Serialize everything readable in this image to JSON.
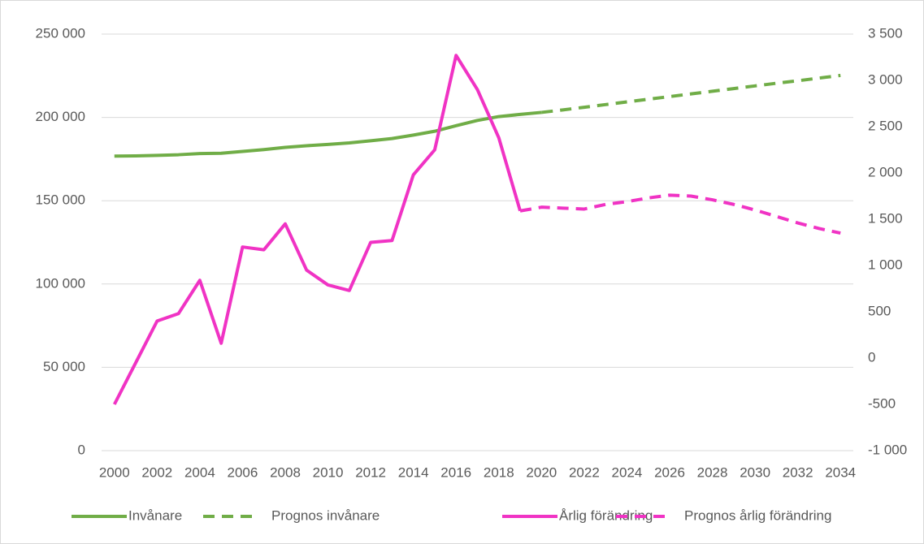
{
  "chart_data": {
    "type": "line",
    "x": [
      2000,
      2001,
      2002,
      2003,
      2004,
      2005,
      2006,
      2007,
      2008,
      2009,
      2010,
      2011,
      2012,
      2013,
      2014,
      2015,
      2016,
      2017,
      2018,
      2019,
      2020,
      2021,
      2022,
      2023,
      2024,
      2025,
      2026,
      2027,
      2028,
      2029,
      2030,
      2031,
      2032,
      2033,
      2034
    ],
    "xlim": [
      1999.4,
      2034.6
    ],
    "xticks": [
      2000,
      2002,
      2004,
      2006,
      2008,
      2010,
      2012,
      2014,
      2016,
      2018,
      2020,
      2022,
      2024,
      2026,
      2028,
      2030,
      2032,
      2034
    ],
    "ylim": [
      0,
      250000
    ],
    "yticks": [
      0,
      {
        "value": 50000,
        "label": "50 000"
      },
      {
        "value": 100000,
        "label": "100 000"
      },
      {
        "value": 150000,
        "label": "150 000"
      },
      {
        "value": 200000,
        "label": "200 000"
      },
      {
        "value": 250000,
        "label": "250 000"
      }
    ],
    "y2lim": [
      -1000,
      3500
    ],
    "y2ticks": [
      {
        "value": -1000,
        "label": "-1 000"
      },
      -500,
      0,
      500,
      {
        "value": 1000,
        "label": "1 000"
      },
      {
        "value": 1500,
        "label": "1 500"
      },
      {
        "value": 2000,
        "label": "2 000"
      },
      {
        "value": 2500,
        "label": "2 500"
      },
      {
        "value": 3000,
        "label": "3 000"
      },
      {
        "value": 3500,
        "label": "3 500"
      }
    ],
    "grid": true,
    "legend": "bottom",
    "series": [
      {
        "name": "Invånare",
        "color": "#70ad47",
        "style": "solid",
        "values": [
          176800,
          176900,
          177200,
          177600,
          178300,
          178500,
          179600,
          180700,
          182000,
          183000,
          183800,
          184700,
          186000,
          187300,
          189400,
          191700,
          195000,
          198200,
          200500,
          201800,
          203000,
          null,
          null,
          null,
          null,
          null,
          null,
          null,
          null,
          null,
          null,
          null,
          null,
          null,
          null
        ]
      },
      {
        "name": "Prognos invånare",
        "color": "#70ad47",
        "style": "dashed",
        "values": [
          null,
          null,
          null,
          null,
          null,
          null,
          null,
          null,
          null,
          null,
          null,
          null,
          null,
          null,
          null,
          null,
          null,
          null,
          null,
          null,
          203000,
          204500,
          206100,
          207700,
          209300,
          210900,
          212500,
          214100,
          215700,
          217300,
          218900,
          220500,
          222000,
          223600,
          225200
        ]
      },
      {
        "name": "Årlig förändring",
        "color": "#f033c4",
        "style": "solid",
        "axis": "y2",
        "values": [
          -500,
          -50,
          400,
          480,
          840,
          160,
          1200,
          1170,
          1450,
          950,
          790,
          730,
          1250,
          1270,
          1980,
          2250,
          3270,
          2900,
          2380,
          1590,
          null,
          null,
          null,
          null,
          null,
          null,
          null,
          null,
          null,
          null,
          null,
          null,
          null,
          null,
          null
        ]
      },
      {
        "name": "Prognos årlig förändring",
        "color": "#f033c4",
        "style": "dashed",
        "axis": "y2",
        "values": [
          null,
          null,
          null,
          null,
          null,
          null,
          null,
          null,
          null,
          null,
          null,
          null,
          null,
          null,
          null,
          null,
          null,
          null,
          null,
          1590,
          1630,
          1620,
          1610,
          1660,
          1690,
          1730,
          1760,
          1750,
          1710,
          1660,
          1600,
          1530,
          1460,
          1400,
          1350
        ]
      }
    ]
  }
}
